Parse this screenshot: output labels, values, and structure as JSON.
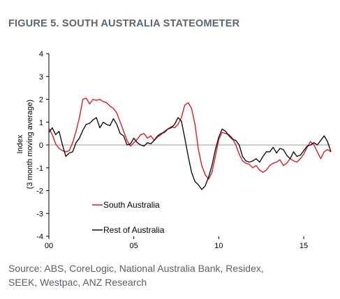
{
  "figure_title": "FIGURE 5. SOUTH AUSTRALIA STATEOMETER",
  "source_lines": [
    "Source: ABS, CoreLogic, National Australia Bank, Residex,",
    "SEEK, Westpac, ANZ Research"
  ],
  "colors": {
    "south_australia": "#e8191f",
    "rest_of_australia": "#111111",
    "zero_line": "#9a9a9a"
  },
  "chart_data": {
    "type": "line",
    "title": "",
    "ylabel_lines": [
      "Index",
      "(3 month moving average)"
    ],
    "xlim": [
      2000,
      2016.6
    ],
    "ylim": [
      -4,
      4
    ],
    "x_ticks": [
      {
        "value": 2000,
        "label": "00"
      },
      {
        "value": 2005,
        "label": "05"
      },
      {
        "value": 2010,
        "label": "10"
      },
      {
        "value": 2015,
        "label": "15"
      }
    ],
    "y_ticks": [
      4,
      3,
      2,
      1,
      0,
      -1,
      -2,
      -3,
      -4
    ],
    "legend": {
      "placement": "bottom-left"
    },
    "series": [
      {
        "name": "South Australia",
        "color": "#e8191f",
        "x": [
          2000.0,
          2000.2,
          2000.4,
          2000.6,
          2000.8,
          2001.0,
          2001.2,
          2001.4,
          2001.6,
          2001.8,
          2002.0,
          2002.2,
          2002.4,
          2002.6,
          2002.8,
          2003.0,
          2003.2,
          2003.4,
          2003.6,
          2003.8,
          2004.0,
          2004.2,
          2004.4,
          2004.6,
          2004.8,
          2005.0,
          2005.2,
          2005.4,
          2005.6,
          2005.8,
          2006.0,
          2006.2,
          2006.4,
          2006.6,
          2006.8,
          2007.0,
          2007.2,
          2007.4,
          2007.6,
          2007.8,
          2008.0,
          2008.2,
          2008.4,
          2008.6,
          2008.8,
          2009.0,
          2009.2,
          2009.4,
          2009.6,
          2009.8,
          2010.0,
          2010.2,
          2010.4,
          2010.6,
          2010.8,
          2011.0,
          2011.2,
          2011.4,
          2011.6,
          2011.8,
          2012.0,
          2012.2,
          2012.4,
          2012.6,
          2012.8,
          2013.0,
          2013.2,
          2013.4,
          2013.6,
          2013.8,
          2014.0,
          2014.2,
          2014.4,
          2014.6,
          2014.8,
          2015.0,
          2015.2,
          2015.4,
          2015.6,
          2015.8,
          2016.0,
          2016.2,
          2016.4,
          2016.6
        ],
        "y": [
          0.75,
          0.45,
          0.05,
          -0.15,
          -0.25,
          -0.3,
          -0.25,
          0.1,
          0.6,
          1.2,
          2.0,
          2.05,
          1.8,
          2.0,
          1.95,
          2.0,
          1.9,
          1.85,
          1.7,
          1.6,
          1.4,
          1.0,
          0.6,
          0.2,
          -0.05,
          0.1,
          0.25,
          0.45,
          0.5,
          0.3,
          0.4,
          0.2,
          0.35,
          0.45,
          0.6,
          0.7,
          0.8,
          0.75,
          0.9,
          1.2,
          1.75,
          1.85,
          1.6,
          0.9,
          -0.2,
          -0.9,
          -1.3,
          -1.5,
          -1.2,
          -0.5,
          0.25,
          0.55,
          0.5,
          0.45,
          0.3,
          0.0,
          -0.4,
          -0.7,
          -0.8,
          -0.85,
          -1.0,
          -0.9,
          -1.1,
          -1.2,
          -1.1,
          -0.9,
          -0.8,
          -0.75,
          -0.65,
          -0.9,
          -0.8,
          -0.6,
          -0.7,
          -0.75,
          -0.6,
          -0.4,
          -0.1,
          0.15,
          0.0,
          -0.3,
          -0.6,
          -0.3,
          -0.2,
          -0.3
        ]
      },
      {
        "name": "Rest of Australia",
        "color": "#111111",
        "x": [
          2000.0,
          2000.2,
          2000.4,
          2000.6,
          2000.8,
          2001.0,
          2001.2,
          2001.4,
          2001.6,
          2001.8,
          2002.0,
          2002.2,
          2002.4,
          2002.6,
          2002.8,
          2003.0,
          2003.2,
          2003.4,
          2003.6,
          2003.8,
          2004.0,
          2004.2,
          2004.4,
          2004.6,
          2004.8,
          2005.0,
          2005.2,
          2005.4,
          2005.6,
          2005.8,
          2006.0,
          2006.2,
          2006.4,
          2006.6,
          2006.8,
          2007.0,
          2007.2,
          2007.4,
          2007.6,
          2007.8,
          2008.0,
          2008.2,
          2008.4,
          2008.6,
          2008.8,
          2009.0,
          2009.2,
          2009.4,
          2009.6,
          2009.8,
          2010.0,
          2010.2,
          2010.4,
          2010.6,
          2010.8,
          2011.0,
          2011.2,
          2011.4,
          2011.6,
          2011.8,
          2012.0,
          2012.2,
          2012.4,
          2012.6,
          2012.8,
          2013.0,
          2013.2,
          2013.4,
          2013.6,
          2013.8,
          2014.0,
          2014.2,
          2014.4,
          2014.6,
          2014.8,
          2015.0,
          2015.2,
          2015.4,
          2015.6,
          2015.8,
          2016.0,
          2016.2,
          2016.4,
          2016.6
        ],
        "y": [
          0.55,
          0.75,
          0.45,
          0.6,
          0.0,
          -0.5,
          -0.35,
          -0.3,
          0.1,
          0.3,
          0.65,
          0.9,
          0.95,
          1.1,
          1.2,
          0.75,
          1.0,
          0.9,
          0.85,
          1.15,
          0.9,
          0.5,
          0.4,
          0.0,
          0.05,
          0.3,
          0.1,
          0.0,
          -0.05,
          0.1,
          0.05,
          0.2,
          0.4,
          0.5,
          0.55,
          0.7,
          0.75,
          0.9,
          1.2,
          1.05,
          0.3,
          -0.5,
          -1.2,
          -1.6,
          -1.75,
          -1.95,
          -1.8,
          -1.4,
          -0.9,
          -0.2,
          0.35,
          0.7,
          0.6,
          0.4,
          0.25,
          0.2,
          0.0,
          -0.5,
          -0.7,
          -0.75,
          -0.7,
          -0.6,
          -0.75,
          -0.5,
          -0.3,
          -0.3,
          -0.1,
          -0.35,
          -0.15,
          -0.2,
          -0.45,
          -0.6,
          -0.3,
          -0.5,
          -0.45,
          -0.25,
          -0.05,
          0.0,
          0.1,
          0.0,
          0.2,
          0.4,
          0.15,
          -0.3
        ]
      }
    ]
  }
}
